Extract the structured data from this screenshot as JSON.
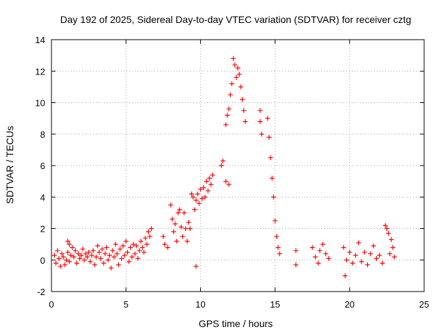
{
  "chart_data": {
    "type": "scatter",
    "title": "Day 192 of 2025, Sidereal Day-to-day VTEC variation (SDTVAR) for receiver cztg",
    "xlabel": "GPS time / hours",
    "ylabel": "SDTVAR / TECUs",
    "xlim": [
      0,
      25
    ],
    "ylim": [
      -2,
      14
    ],
    "x_ticks": [
      0,
      5,
      10,
      15,
      20,
      25
    ],
    "y_ticks": [
      -2,
      0,
      2,
      4,
      6,
      8,
      10,
      12,
      14
    ],
    "x_tick_labels": [
      "0",
      "5",
      "10",
      "15",
      "20",
      "25"
    ],
    "y_tick_labels": [
      "-2",
      "0",
      "2",
      "4",
      "6",
      "8",
      "10",
      "12",
      "14"
    ],
    "grid": true,
    "marker": "+",
    "series": [
      {
        "name": "SDTVAR",
        "color": "#ff0000",
        "points": [
          [
            0.2,
            0.3
          ],
          [
            0.3,
            -0.2
          ],
          [
            0.4,
            0.6
          ],
          [
            0.5,
            0.1
          ],
          [
            0.6,
            -0.4
          ],
          [
            0.7,
            0.4
          ],
          [
            0.8,
            0.2
          ],
          [
            0.9,
            -0.3
          ],
          [
            1.0,
            0.0
          ],
          [
            1.1,
            0.5
          ],
          [
            1.2,
            -0.1
          ],
          [
            1.3,
            0.3
          ],
          [
            1.1,
            1.2
          ],
          [
            1.2,
            1.0
          ],
          [
            1.4,
            0.8
          ],
          [
            1.5,
            0.2
          ],
          [
            1.6,
            0.6
          ],
          [
            1.7,
            -0.2
          ],
          [
            1.8,
            0.4
          ],
          [
            1.9,
            0.1
          ],
          [
            2.0,
            0.3
          ],
          [
            2.1,
            0.7
          ],
          [
            2.2,
            0.0
          ],
          [
            2.3,
            0.4
          ],
          [
            2.4,
            0.2
          ],
          [
            2.5,
            0.5
          ],
          [
            2.6,
            -0.1
          ],
          [
            2.7,
            0.3
          ],
          [
            2.8,
            0.6
          ],
          [
            2.9,
            -0.3
          ],
          [
            3.0,
            0.2
          ],
          [
            3.1,
            0.9
          ],
          [
            3.2,
            0.5
          ],
          [
            3.3,
            0.1
          ],
          [
            3.4,
            0.7
          ],
          [
            3.5,
            -0.2
          ],
          [
            3.6,
            0.4
          ],
          [
            3.7,
            0.8
          ],
          [
            3.8,
            0.0
          ],
          [
            3.9,
            0.3
          ],
          [
            4.0,
            -0.5
          ],
          [
            4.1,
            0.6
          ],
          [
            4.2,
            0.2
          ],
          [
            4.3,
            1.0
          ],
          [
            4.4,
            0.4
          ],
          [
            4.5,
            -0.3
          ],
          [
            4.6,
            0.7
          ],
          [
            4.7,
            0.1
          ],
          [
            4.8,
            0.9
          ],
          [
            4.9,
            0.3
          ],
          [
            5.0,
            1.2
          ],
          [
            5.1,
            0.5
          ],
          [
            5.2,
            -0.1
          ],
          [
            5.3,
            0.8
          ],
          [
            5.4,
            0.2
          ],
          [
            5.5,
            1.0
          ],
          [
            5.6,
            0.4
          ],
          [
            5.7,
            0.9
          ],
          [
            5.8,
            0.1
          ],
          [
            5.9,
            0.6
          ],
          [
            6.0,
            1.2
          ],
          [
            6.1,
            0.8
          ],
          [
            6.2,
            0.5
          ],
          [
            6.3,
            1.4
          ],
          [
            6.4,
            1.0
          ],
          [
            6.5,
            1.8
          ],
          [
            6.6,
            1.5
          ],
          [
            6.7,
            2.0
          ],
          [
            7.5,
            1.5
          ],
          [
            7.6,
            1.0
          ],
          [
            7.8,
            0.8
          ],
          [
            8.0,
            3.5
          ],
          [
            8.1,
            2.6
          ],
          [
            8.2,
            1.8
          ],
          [
            8.3,
            2.3
          ],
          [
            8.4,
            1.2
          ],
          [
            8.5,
            3.0
          ],
          [
            8.6,
            3.2
          ],
          [
            8.7,
            2.1
          ],
          [
            8.8,
            1.5
          ],
          [
            8.9,
            3.0
          ],
          [
            9.0,
            2.0
          ],
          [
            9.1,
            1.2
          ],
          [
            9.2,
            2.4
          ],
          [
            9.3,
            2.0
          ],
          [
            9.4,
            4.2
          ],
          [
            9.5,
            4.0
          ],
          [
            9.6,
            3.2
          ],
          [
            9.7,
            3.8
          ],
          [
            9.7,
            -0.4
          ],
          [
            9.8,
            4.2
          ],
          [
            9.9,
            3.6
          ],
          [
            10.0,
            4.5
          ],
          [
            10.1,
            3.9
          ],
          [
            10.2,
            4.6
          ],
          [
            10.3,
            4.0
          ],
          [
            10.4,
            5.0
          ],
          [
            10.5,
            4.4
          ],
          [
            10.6,
            5.2
          ],
          [
            10.7,
            4.8
          ],
          [
            10.8,
            5.4
          ],
          [
            11.4,
            6.0
          ],
          [
            11.5,
            6.3
          ],
          [
            11.7,
            8.6
          ],
          [
            11.7,
            5.0
          ],
          [
            11.8,
            9.2
          ],
          [
            11.9,
            4.8
          ],
          [
            11.9,
            9.6
          ],
          [
            12.0,
            10.5
          ],
          [
            12.1,
            11.2
          ],
          [
            12.2,
            12.8
          ],
          [
            12.3,
            12.4
          ],
          [
            12.4,
            11.6
          ],
          [
            12.5,
            12.2
          ],
          [
            12.6,
            11.8
          ],
          [
            12.7,
            11.0
          ],
          [
            12.8,
            10.2
          ],
          [
            12.9,
            9.5
          ],
          [
            13.0,
            8.8
          ],
          [
            14.0,
            9.5
          ],
          [
            14.0,
            8.8
          ],
          [
            14.1,
            8.0
          ],
          [
            14.5,
            9.0
          ],
          [
            14.6,
            7.8
          ],
          [
            14.7,
            6.5
          ],
          [
            14.8,
            5.2
          ],
          [
            14.9,
            4.0
          ],
          [
            15.0,
            2.5
          ],
          [
            15.1,
            1.5
          ],
          [
            15.2,
            0.8
          ],
          [
            15.3,
            0.4
          ],
          [
            16.4,
            0.6
          ],
          [
            16.4,
            -0.3
          ],
          [
            17.5,
            0.8
          ],
          [
            17.7,
            0.2
          ],
          [
            17.9,
            -0.2
          ],
          [
            18.0,
            0.6
          ],
          [
            18.2,
            1.0
          ],
          [
            18.4,
            0.4
          ],
          [
            18.6,
            0.1
          ],
          [
            19.6,
            0.8
          ],
          [
            19.7,
            -1.0
          ],
          [
            19.8,
            0.0
          ],
          [
            20.0,
            0.5
          ],
          [
            20.2,
            -0.2
          ],
          [
            20.4,
            0.3
          ],
          [
            20.6,
            1.1
          ],
          [
            20.8,
            -0.1
          ],
          [
            21.0,
            0.5
          ],
          [
            21.2,
            -0.3
          ],
          [
            21.4,
            0.4
          ],
          [
            21.6,
            0.9
          ],
          [
            21.8,
            0.1
          ],
          [
            22.0,
            0.3
          ],
          [
            22.2,
            -0.2
          ],
          [
            22.4,
            2.2
          ],
          [
            22.5,
            2.0
          ],
          [
            22.6,
            1.7
          ],
          [
            22.7,
            0.4
          ],
          [
            22.8,
            1.3
          ],
          [
            22.9,
            0.8
          ],
          [
            23.0,
            0.2
          ]
        ]
      }
    ]
  }
}
